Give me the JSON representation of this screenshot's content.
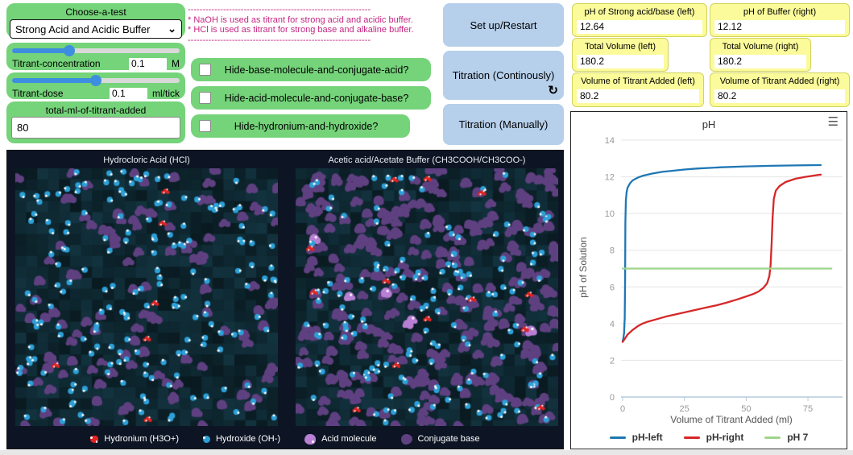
{
  "icons": {
    "chevron_down": "⌄",
    "forever": "↻",
    "menu": "☰"
  },
  "chooser": {
    "title": "Choose-a-test",
    "selected": "Strong Acid and Acidic Buffer"
  },
  "sliders": [
    {
      "label": "Titrant-concentration",
      "value": "0.1",
      "unit": "M",
      "fill_pct": 34
    },
    {
      "label": "Titrant-dose",
      "value": "0.1",
      "unit": "ml/tick",
      "fill_pct": 50
    }
  ],
  "input": {
    "title": "total-ml-of-titrant-added",
    "value": "80"
  },
  "notes": {
    "color": "#c42682",
    "dashes": "--------------------------------------------------------------",
    "line1": "* NaOH is used as titrant for strong acid and acidic buffer.",
    "line2": "* HCl is used as titrant for strong base and alkaline buffer."
  },
  "switches": [
    {
      "label": "Hide-base-molecule-and-conjugate-acid?",
      "checked": false
    },
    {
      "label": "Hide-acid-molecule-and-conjugate-base?",
      "checked": false
    },
    {
      "label": "Hide-hydronium-and-hydroxide?",
      "checked": false
    }
  ],
  "buttons": [
    {
      "label": "Set up/Restart",
      "forever": false
    },
    {
      "label": "Titration (Continously)",
      "forever": true
    },
    {
      "label": "Titration (Manually)",
      "forever": false
    }
  ],
  "monitors": [
    {
      "label": "pH of Strong acid/base (left)",
      "value": "12.64"
    },
    {
      "label": "pH of Buffer (right)",
      "value": "12.12"
    },
    {
      "label": "Total Volume (left)",
      "value": "180.2"
    },
    {
      "label": "Total Volume (right)",
      "value": "180.2"
    },
    {
      "label": "Volume of Titrant Added (left)",
      "value": "80.2"
    },
    {
      "label": "Volume of Titrant Added (right)",
      "value": "80.2"
    }
  ],
  "view": {
    "background": "#0d1524",
    "panels": [
      {
        "title": "Hydrocloric Acid (HCl)",
        "seed": 7,
        "molecules": {
          "conjugate_base": 115,
          "acid_molecule": 0,
          "hydroxide": 175,
          "hydronium": 6
        }
      },
      {
        "title": "Acetic acid/Acetate Buffer (CH3COOH/CH3COO-)",
        "seed": 42,
        "molecules": {
          "conjugate_base": 300,
          "acid_molecule": 6,
          "hydroxide": 150,
          "hydronium": 13
        }
      }
    ],
    "colors": {
      "conjugate_base": "#5f4080",
      "acid_molecule": "#b87fd4",
      "hydroxide": "#2da0d8",
      "hydronium": "#e32222",
      "speck": "#ffffff"
    },
    "legend": [
      {
        "label": "Hydronium (H3O+)",
        "type": "hydronium",
        "color": "#e32222"
      },
      {
        "label": "Hydroxide (OH-)",
        "type": "hydroxide",
        "color": "#2da0d8"
      },
      {
        "label": "Acid molecule",
        "type": "acid",
        "color": "#b87fd4"
      },
      {
        "label": "Conjugate base",
        "type": "base",
        "color": "#5f4080"
      }
    ]
  },
  "chart_data": {
    "type": "line",
    "title": "pH",
    "xlabel": "Volume of Titrant Added (ml)",
    "ylabel": "pH of Solution",
    "xlim": [
      0,
      89
    ],
    "ylim": [
      0,
      14
    ],
    "xticks": [
      0,
      25,
      50,
      75
    ],
    "yticks": [
      0,
      2,
      4,
      6,
      8,
      10,
      12,
      14
    ],
    "grid": "horizontal",
    "legend_position": "bottom",
    "series": [
      {
        "name": "pH-left",
        "color": "#1f77b4",
        "points": [
          [
            0,
            3.05
          ],
          [
            0.3,
            3.2
          ],
          [
            0.6,
            3.5
          ],
          [
            0.85,
            4.3
          ],
          [
            1,
            6.5
          ],
          [
            1.1,
            9.5
          ],
          [
            1.3,
            10.7
          ],
          [
            1.6,
            11.15
          ],
          [
            2,
            11.4
          ],
          [
            3,
            11.65
          ],
          [
            4,
            11.8
          ],
          [
            6,
            11.95
          ],
          [
            8,
            12.05
          ],
          [
            12,
            12.18
          ],
          [
            16,
            12.27
          ],
          [
            20,
            12.33
          ],
          [
            25,
            12.4
          ],
          [
            30,
            12.45
          ],
          [
            40,
            12.52
          ],
          [
            50,
            12.57
          ],
          [
            60,
            12.6
          ],
          [
            70,
            12.62
          ],
          [
            80.2,
            12.64
          ]
        ]
      },
      {
        "name": "pH-right",
        "color": "#d62728",
        "points": [
          [
            0,
            3.0
          ],
          [
            1,
            3.2
          ],
          [
            2,
            3.4
          ],
          [
            4,
            3.65
          ],
          [
            6,
            3.85
          ],
          [
            8,
            4.0
          ],
          [
            10,
            4.1
          ],
          [
            14,
            4.25
          ],
          [
            18,
            4.4
          ],
          [
            22,
            4.52
          ],
          [
            26,
            4.64
          ],
          [
            30,
            4.76
          ],
          [
            34,
            4.88
          ],
          [
            38,
            5.0
          ],
          [
            42,
            5.14
          ],
          [
            46,
            5.3
          ],
          [
            50,
            5.48
          ],
          [
            53,
            5.62
          ],
          [
            55,
            5.75
          ],
          [
            57,
            5.95
          ],
          [
            58.5,
            6.2
          ],
          [
            59.4,
            6.6
          ],
          [
            59.9,
            7.2
          ],
          [
            60.3,
            8.4
          ],
          [
            60.7,
            9.8
          ],
          [
            61.2,
            10.8
          ],
          [
            62,
            11.25
          ],
          [
            63.5,
            11.5
          ],
          [
            66,
            11.72
          ],
          [
            70,
            11.9
          ],
          [
            74,
            12.0
          ],
          [
            80.2,
            12.12
          ]
        ]
      },
      {
        "name": "pH 7",
        "color": "#9fd48c",
        "points": [
          [
            0,
            7
          ],
          [
            84.5,
            7
          ]
        ]
      }
    ]
  }
}
